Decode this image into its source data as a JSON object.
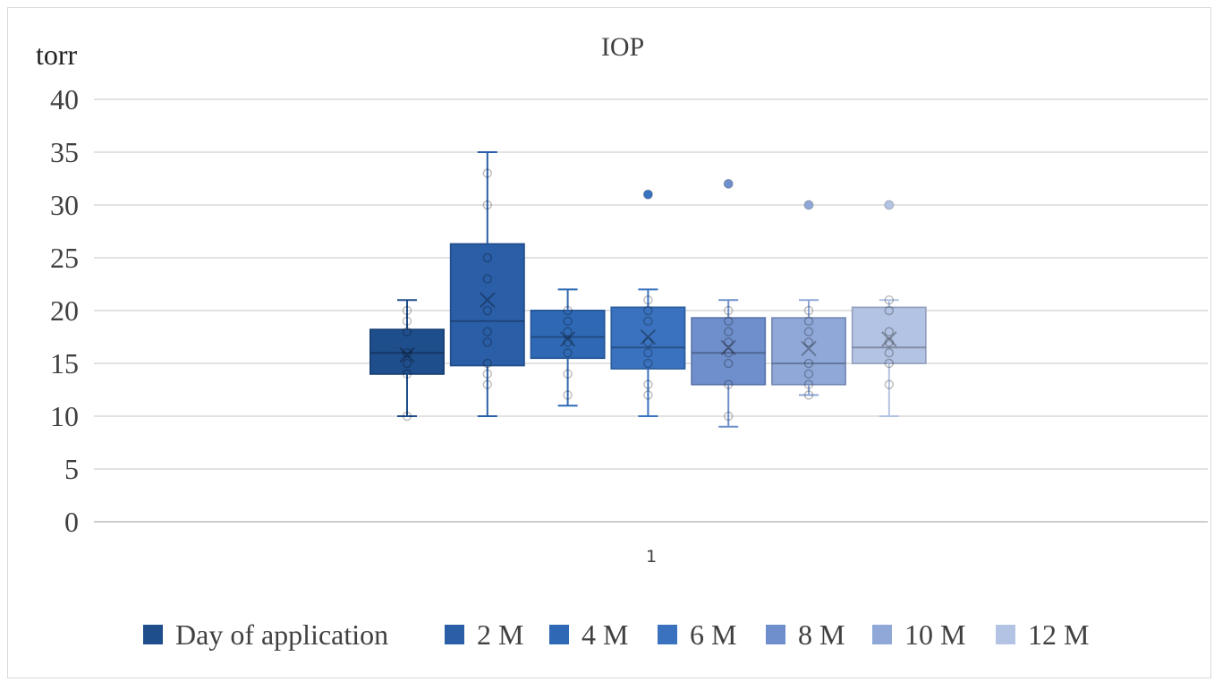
{
  "chart_data": {
    "type": "boxplot",
    "title": "IOP",
    "ylabel": "torr",
    "xlabel": "",
    "categories": [
      "1"
    ],
    "ylim": [
      0,
      40
    ],
    "yticks": [
      0,
      5,
      10,
      15,
      20,
      25,
      30,
      35,
      40
    ],
    "grid": true,
    "legend_position": "bottom",
    "series": [
      {
        "name": "Day of application",
        "color": "#1f4e8c",
        "min": 10,
        "q1": 14,
        "median": 16,
        "q3": 18.2,
        "max": 21,
        "mean": 15.8,
        "points": [
          10,
          14,
          15,
          16,
          18,
          19,
          20
        ],
        "outliers": []
      },
      {
        "name": "2 M",
        "color": "#2a5ea7",
        "min": 10,
        "q1": 14.8,
        "median": 19,
        "q3": 26.3,
        "max": 35,
        "mean": 21,
        "points": [
          13,
          14,
          15,
          17,
          18,
          20,
          23,
          25,
          30,
          33
        ],
        "outliers": []
      },
      {
        "name": "4 M",
        "color": "#2f69b5",
        "min": 11,
        "q1": 15.5,
        "median": 17.5,
        "q3": 20,
        "max": 22,
        "mean": 17.3,
        "points": [
          12,
          14,
          16,
          17,
          18,
          19,
          20
        ],
        "outliers": []
      },
      {
        "name": "6 M",
        "color": "#3a72bf",
        "min": 10,
        "q1": 14.5,
        "median": 16.5,
        "q3": 20.3,
        "max": 22,
        "mean": 17.5,
        "points": [
          12,
          13,
          15,
          16,
          17,
          19,
          20,
          21
        ],
        "outliers": [
          31
        ]
      },
      {
        "name": "8 M",
        "color": "#6f8fcc",
        "min": 9,
        "q1": 13,
        "median": 16,
        "q3": 19.3,
        "max": 21,
        "mean": 16.5,
        "points": [
          10,
          13,
          15,
          16,
          17,
          18,
          19,
          20
        ],
        "outliers": [
          32
        ]
      },
      {
        "name": "10 M",
        "color": "#8fa8d8",
        "min": 12,
        "q1": 13,
        "median": 15,
        "q3": 19.3,
        "max": 21,
        "mean": 16.4,
        "points": [
          12,
          13,
          14,
          15,
          17,
          18,
          19,
          20
        ],
        "outliers": [
          30
        ]
      },
      {
        "name": "12 M",
        "color": "#b3c3e3",
        "min": 10,
        "q1": 15,
        "median": 16.5,
        "q3": 20.3,
        "max": 21,
        "mean": 17.3,
        "points": [
          13,
          15,
          16,
          17,
          18,
          20,
          21
        ],
        "outliers": [
          30
        ]
      }
    ]
  }
}
